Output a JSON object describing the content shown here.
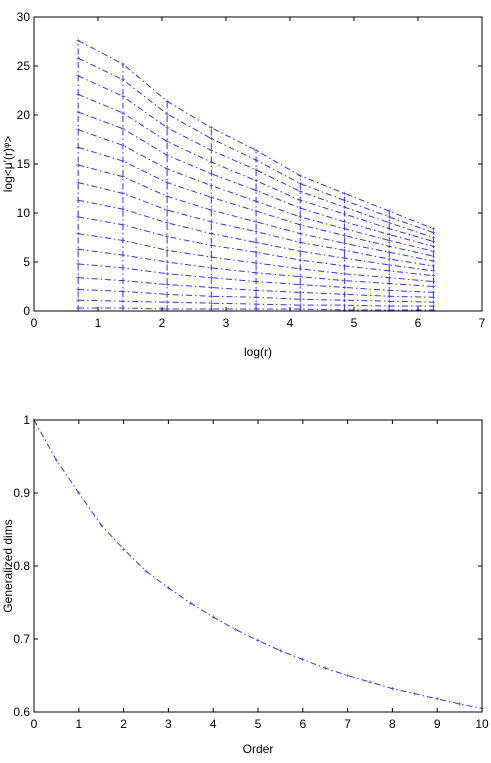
{
  "chart_data": [
    {
      "type": "line",
      "title": "",
      "xlabel": "log(r)",
      "ylabel": "log<μ'(r)ᵠ>",
      "xlim": [
        0,
        7
      ],
      "ylim": [
        0,
        30
      ],
      "xticks": [
        "0",
        "1",
        "2",
        "3",
        "4",
        "5",
        "6",
        "7"
      ],
      "yticks": [
        "0",
        "5",
        "10",
        "15",
        "20",
        "25",
        "30"
      ],
      "grid": false,
      "x": [
        0.69,
        1.39,
        2.08,
        2.77,
        3.47,
        4.16,
        4.85,
        5.55,
        6.24
      ],
      "series": [
        {
          "values": [
            27.6,
            25.2,
            21.4,
            18.7,
            16.4,
            13.8,
            12.0,
            10.2,
            8.4
          ]
        },
        {
          "values": [
            25.8,
            23.6,
            20.1,
            17.6,
            15.4,
            13.0,
            11.3,
            9.6,
            8.0
          ]
        },
        {
          "values": [
            24.0,
            21.9,
            18.7,
            16.4,
            14.4,
            12.2,
            10.6,
            9.0,
            7.5
          ]
        },
        {
          "values": [
            22.1,
            20.2,
            17.3,
            15.2,
            13.3,
            11.3,
            9.9,
            8.4,
            7.1
          ]
        },
        {
          "values": [
            20.3,
            18.6,
            15.9,
            14.0,
            12.3,
            10.5,
            9.1,
            7.8,
            6.6
          ]
        },
        {
          "values": [
            18.5,
            16.9,
            14.5,
            12.8,
            11.2,
            9.6,
            8.4,
            7.2,
            6.1
          ]
        },
        {
          "values": [
            16.7,
            15.3,
            13.1,
            11.6,
            10.2,
            8.8,
            7.7,
            6.6,
            5.6
          ]
        },
        {
          "values": [
            14.9,
            13.7,
            11.7,
            10.3,
            9.1,
            7.9,
            6.9,
            6.0,
            5.1
          ]
        },
        {
          "values": [
            13.1,
            12.0,
            10.3,
            9.1,
            8.1,
            7.0,
            6.2,
            5.3,
            4.6
          ]
        },
        {
          "values": [
            11.3,
            10.4,
            9.0,
            7.9,
            7.0,
            6.1,
            5.4,
            4.7,
            4.1
          ]
        },
        {
          "values": [
            9.6,
            8.8,
            7.6,
            6.7,
            6.0,
            5.2,
            4.6,
            4.1,
            3.6
          ]
        },
        {
          "values": [
            7.9,
            7.2,
            6.2,
            5.5,
            4.9,
            4.3,
            3.8,
            3.4,
            3.0
          ]
        },
        {
          "values": [
            6.3,
            5.7,
            5.0,
            4.4,
            3.9,
            3.5,
            3.1,
            2.8,
            2.5
          ]
        },
        {
          "values": [
            4.8,
            4.4,
            3.8,
            3.4,
            3.0,
            2.7,
            2.4,
            2.1,
            1.9
          ]
        },
        {
          "values": [
            3.4,
            3.1,
            2.7,
            2.4,
            2.1,
            1.9,
            1.7,
            1.5,
            1.4
          ]
        },
        {
          "values": [
            2.2,
            2.0,
            1.7,
            1.5,
            1.4,
            1.2,
            1.1,
            1.0,
            0.9
          ]
        },
        {
          "values": [
            1.1,
            1.0,
            0.9,
            0.8,
            0.7,
            0.6,
            0.6,
            0.5,
            0.5
          ]
        },
        {
          "values": [
            0.3,
            0.3,
            0.2,
            0.2,
            0.2,
            0.2,
            0.1,
            0.1,
            0.1
          ]
        }
      ]
    },
    {
      "type": "line",
      "title": "",
      "xlabel": "Order",
      "ylabel": "Generalized dims",
      "xlim": [
        0,
        10
      ],
      "ylim": [
        0.6,
        1.0
      ],
      "xticks": [
        "0",
        "1",
        "2",
        "3",
        "4",
        "5",
        "6",
        "7",
        "8",
        "9",
        "10"
      ],
      "yticks": [
        "0.6",
        "0.7",
        "0.8",
        "0.9",
        "1"
      ],
      "grid": false,
      "x": [
        0,
        0.5,
        1,
        1.5,
        2,
        2.5,
        3,
        3.5,
        4,
        4.5,
        5,
        5.5,
        6,
        6.5,
        7,
        7.5,
        8,
        8.5,
        9,
        9.5,
        10
      ],
      "series": [
        {
          "values": [
            1.0,
            0.945,
            0.9,
            0.856,
            0.823,
            0.793,
            0.77,
            0.749,
            0.73,
            0.713,
            0.698,
            0.684,
            0.672,
            0.66,
            0.65,
            0.641,
            0.632,
            0.625,
            0.618,
            0.611,
            0.605
          ]
        }
      ]
    }
  ]
}
